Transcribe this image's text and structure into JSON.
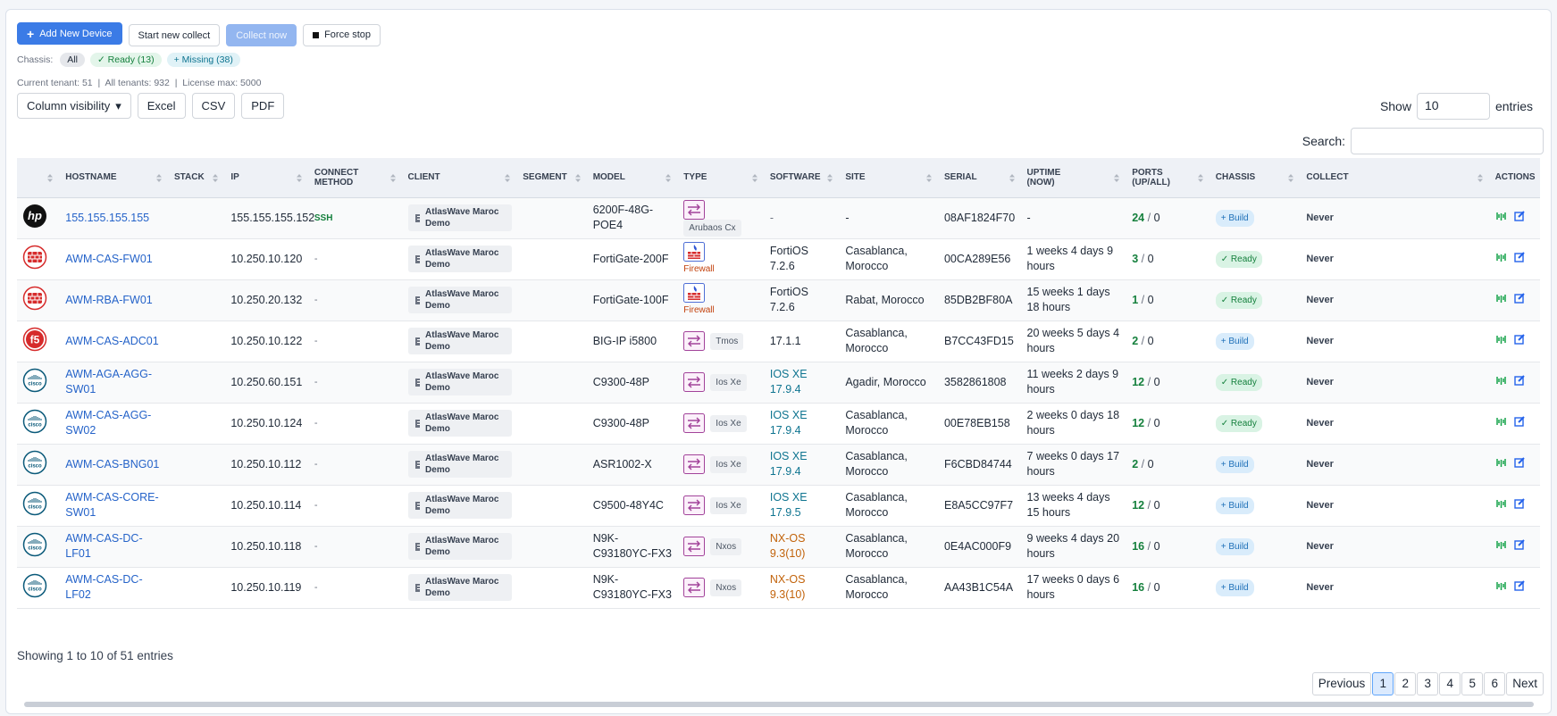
{
  "toolbar": {
    "add": "Add New Device",
    "start": "Start new collect",
    "collect_now": "Collect now",
    "force_stop": "Force stop"
  },
  "chassis_filter": {
    "label": "Chassis:",
    "all": "All",
    "ready": "Ready (13)",
    "missing": "Missing (38)"
  },
  "tenant_info": {
    "current": "Current tenant: 51",
    "all": "All tenants: 932",
    "license": "License max: 5000"
  },
  "exports": {
    "column_visibility": "Column visibility",
    "excel": "Excel",
    "csv": "CSV",
    "pdf": "PDF"
  },
  "length": {
    "show": "Show",
    "value": "10",
    "entries": "entries"
  },
  "search": {
    "label": "Search:"
  },
  "table": {
    "columns": [
      "HOSTNAME",
      "STACK",
      "IP",
      "CONNECT METHOD",
      "CLIENT",
      "SEGMENT",
      "MODEL",
      "TYPE",
      "SOFTWARE",
      "SITE",
      "SERIAL",
      "UPTIME (NOW)",
      "PORTS (UP/ALL)",
      "CHASSIS",
      "COLLECT",
      "ACTIONS"
    ],
    "ports_separator": "/",
    "rows": [
      {
        "logo": "hp",
        "hostname": "155.155.155.155",
        "ip": "155.155.155.152",
        "connect": "SSH",
        "client": "AtlasWave Maroc Demo",
        "model": "6200F-48G-POE4",
        "type": "Arubaos Cx",
        "software": "-",
        "site": "-",
        "serial": "08AF1824F70",
        "uptime": "-",
        "ports_up": 24,
        "ports_all": 0,
        "chassis": "Build",
        "collect": "Never"
      },
      {
        "logo": "fortinet",
        "hostname": "AWM-CAS-FW01",
        "ip": "10.250.10.120",
        "connect": "-",
        "client": "AtlasWave Maroc Demo",
        "model": "FortiGate-200F",
        "type": "Firewall",
        "software": "FortiOS 7.2.6",
        "site": "Casablanca, Morocco",
        "serial": "00CA289E56",
        "uptime": "1 weeks 4 days 9 hours",
        "ports_up": 3,
        "ports_all": 0,
        "chassis": "Ready",
        "collect": "Never"
      },
      {
        "logo": "fortinet",
        "hostname": "AWM-RBA-FW01",
        "ip": "10.250.20.132",
        "connect": "-",
        "client": "AtlasWave Maroc Demo",
        "model": "FortiGate-100F",
        "type": "Firewall",
        "software": "FortiOS 7.2.6",
        "site": "Rabat, Morocco",
        "serial": "85DB2BF80A",
        "uptime": "15 weeks 1 days 18 hours",
        "ports_up": 1,
        "ports_all": 0,
        "chassis": "Ready",
        "collect": "Never"
      },
      {
        "logo": "f5",
        "hostname": "AWM-CAS-ADC01",
        "ip": "10.250.10.122",
        "connect": "-",
        "client": "AtlasWave Maroc Demo",
        "model": "BIG-IP i5800",
        "type": "Tmos",
        "software": "17.1.1",
        "site": "Casablanca, Morocco",
        "serial": "B7CC43FD15",
        "uptime": "20 weeks 5 days 4 hours",
        "ports_up": 2,
        "ports_all": 0,
        "chassis": "Build",
        "collect": "Never"
      },
      {
        "logo": "cisco",
        "hostname": "AWM-AGA-AGG-SW01",
        "ip": "10.250.60.151",
        "connect": "-",
        "client": "AtlasWave Maroc Demo",
        "model": "C9300-48P",
        "type": "Ios Xe",
        "software": "IOS XE 17.9.4",
        "site": "Agadir, Morocco",
        "serial": "3582861808",
        "uptime": "11 weeks 2 days 9 hours",
        "ports_up": 12,
        "ports_all": 0,
        "chassis": "Ready",
        "collect": "Never"
      },
      {
        "logo": "cisco",
        "hostname": "AWM-CAS-AGG-SW02",
        "ip": "10.250.10.124",
        "connect": "-",
        "client": "AtlasWave Maroc Demo",
        "model": "C9300-48P",
        "type": "Ios Xe",
        "software": "IOS XE 17.9.4",
        "site": "Casablanca, Morocco",
        "serial": "00E78EB158",
        "uptime": "2 weeks 0 days 18 hours",
        "ports_up": 12,
        "ports_all": 0,
        "chassis": "Ready",
        "collect": "Never"
      },
      {
        "logo": "cisco",
        "hostname": "AWM-CAS-BNG01",
        "ip": "10.250.10.112",
        "connect": "-",
        "client": "AtlasWave Maroc Demo",
        "model": "ASR1002-X",
        "type": "Ios Xe",
        "software": "IOS XE 17.9.4",
        "site": "Casablanca, Morocco",
        "serial": "F6CBD84744",
        "uptime": "7 weeks 0 days 17 hours",
        "ports_up": 2,
        "ports_all": 0,
        "chassis": "Build",
        "collect": "Never"
      },
      {
        "logo": "cisco",
        "hostname": "AWM-CAS-CORE-SW01",
        "ip": "10.250.10.114",
        "connect": "-",
        "client": "AtlasWave Maroc Demo",
        "model": "C9500-48Y4C",
        "type": "Ios Xe",
        "software": "IOS XE 17.9.5",
        "site": "Casablanca, Morocco",
        "serial": "E8A5CC97F7",
        "uptime": "13 weeks 4 days 15 hours",
        "ports_up": 12,
        "ports_all": 0,
        "chassis": "Build",
        "collect": "Never"
      },
      {
        "logo": "cisco",
        "hostname": "AWM-CAS-DC-LF01",
        "ip": "10.250.10.118",
        "connect": "-",
        "client": "AtlasWave Maroc Demo",
        "model": "N9K-C93180YC-FX3",
        "type": "Nxos",
        "software": "NX-OS 9.3(10)",
        "site": "Casablanca, Morocco",
        "serial": "0E4AC000F9",
        "uptime": "9 weeks 4 days 20 hours",
        "ports_up": 16,
        "ports_all": 0,
        "chassis": "Build",
        "collect": "Never"
      },
      {
        "logo": "cisco",
        "hostname": "AWM-CAS-DC-LF02",
        "ip": "10.250.10.119",
        "connect": "-",
        "client": "AtlasWave Maroc Demo",
        "model": "N9K-C93180YC-FX3",
        "type": "Nxos",
        "software": "NX-OS 9.3(10)",
        "site": "Casablanca, Morocco",
        "serial": "AA43B1C54A",
        "uptime": "17 weeks 0 days 6 hours",
        "ports_up": 16,
        "ports_all": 0,
        "chassis": "Build",
        "collect": "Never"
      }
    ]
  },
  "footer": {
    "info": "Showing 1 to 10 of 51 entries",
    "previous": "Previous",
    "pages": [
      "1",
      "2",
      "3",
      "4",
      "5",
      "6"
    ],
    "next": "Next"
  }
}
